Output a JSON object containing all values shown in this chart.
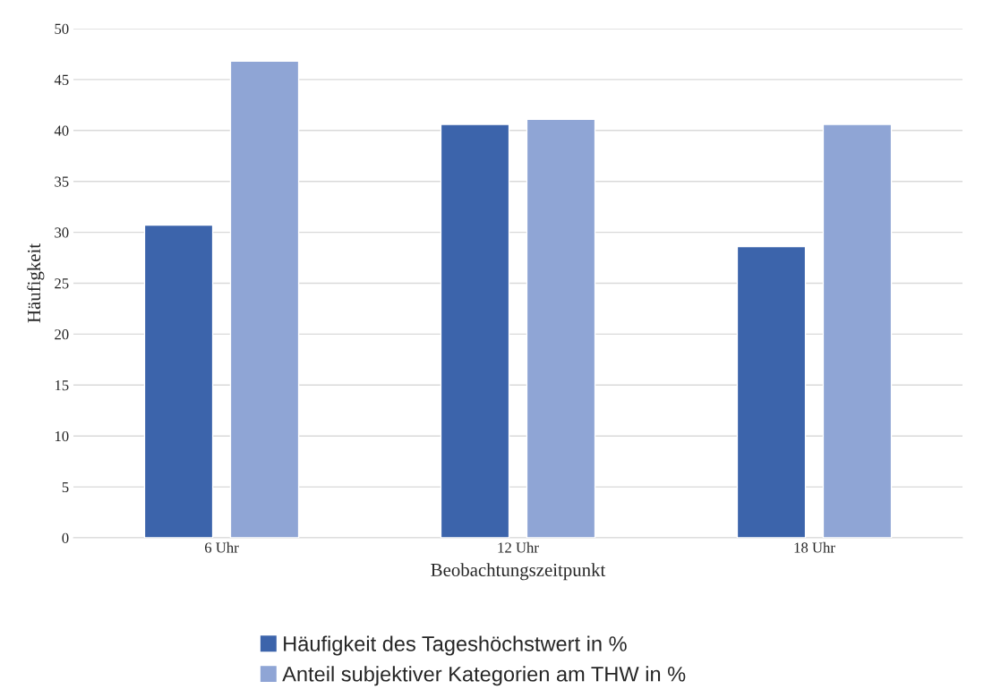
{
  "chart_data": {
    "type": "bar",
    "xlabel": "Beobachtungszeitpunkt",
    "ylabel": "Häufigkeit",
    "categories": [
      "6 Uhr",
      "12 Uhr",
      "18 Uhr"
    ],
    "series": [
      {
        "name": "Häufigkeit des Tageshöchstwert in %",
        "color": "#3c64ab",
        "values": [
          30.7,
          40.6,
          28.6
        ]
      },
      {
        "name": "Anteil subjektiver Kategorien am THW in %",
        "color": "#8fa5d5",
        "values": [
          46.8,
          41.1,
          40.6
        ]
      }
    ],
    "ylim": [
      0,
      50
    ],
    "yticks": [
      0,
      5,
      10,
      15,
      20,
      25,
      30,
      35,
      40,
      45,
      50
    ],
    "grid": "y",
    "legend": "bottom"
  }
}
